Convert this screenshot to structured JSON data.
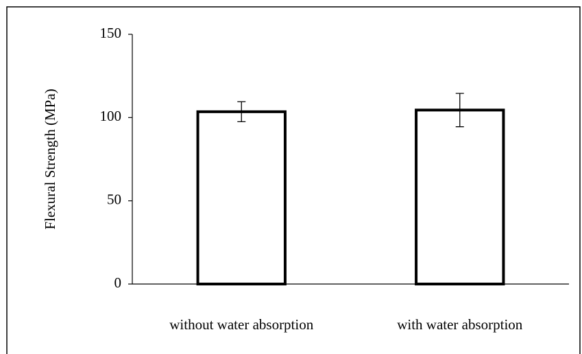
{
  "chart_data": {
    "type": "bar",
    "y_label": "Flexural Strength (MPa)",
    "categories": [
      "without water absorption",
      "with water absorption"
    ],
    "values": [
      103.5,
      104.5
    ],
    "errors": [
      6,
      10
    ],
    "color": "#ffffff",
    "edge_color": "#000000",
    "ylim": [
      0,
      150
    ],
    "yticks": [
      0,
      50,
      100,
      150
    ],
    "grid": false
  }
}
